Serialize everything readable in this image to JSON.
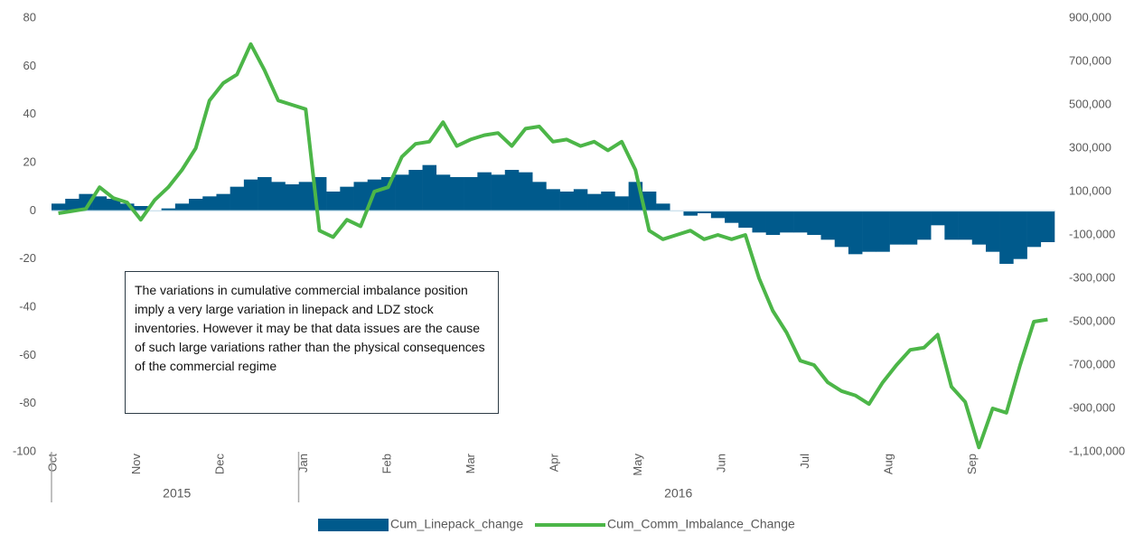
{
  "chart_data": {
    "type": "bar-line",
    "x_labels": [
      "Oct",
      "Nov",
      "Dec",
      "Jan",
      "Feb",
      "Mar",
      "Apr",
      "May",
      "Jun",
      "Jul",
      "Aug",
      "Sep"
    ],
    "year_labels": [
      "2015",
      "2016"
    ],
    "annotation": "The variations in cumulative commercial imbalance position imply a very large variation in linepack and LDZ stock inventories. However it may be that data issues are the cause of such large variations rather than the physical consequences of the commercial regime",
    "ylim": [
      -100,
      80
    ],
    "yticks": [
      -100,
      -80,
      -60,
      -40,
      -20,
      0,
      20,
      40,
      60,
      80
    ],
    "y2lim": [
      -1100000,
      900000
    ],
    "y2ticks": [
      {
        "value": -1100000,
        "label": "-1,100,000"
      },
      {
        "value": -900000,
        "label": "-900,000"
      },
      {
        "value": -700000,
        "label": "-700,000"
      },
      {
        "value": -500000,
        "label": "-500,000"
      },
      {
        "value": -300000,
        "label": "-300,000"
      },
      {
        "value": -100000,
        "label": "-100,000"
      },
      {
        "value": 100000,
        "label": "100,000"
      },
      {
        "value": 300000,
        "label": "300,000"
      },
      {
        "value": 500000,
        "label": "500,000"
      },
      {
        "value": 700000,
        "label": "700,000"
      },
      {
        "value": 900000,
        "label": "900,000"
      }
    ],
    "legend": "bottom",
    "series": [
      {
        "name": "Cum_Linepack_change",
        "color": "#005a8c",
        "kind": "bar",
        "axis": "y",
        "values": [
          3,
          5,
          7,
          6,
          5,
          3,
          2,
          0,
          1,
          3,
          5,
          6,
          7,
          10,
          13,
          14,
          12,
          11,
          12,
          14,
          8,
          10,
          12,
          13,
          14,
          15,
          17,
          19,
          15,
          14,
          14,
          16,
          15,
          17,
          16,
          12,
          9,
          8,
          9,
          7,
          8,
          6,
          12,
          8,
          3,
          0,
          -2,
          -1,
          -3,
          -5,
          -7,
          -9,
          -10,
          -9,
          -9,
          -10,
          -12,
          -15,
          -18,
          -17,
          -17,
          -14,
          -14,
          -12,
          -6,
          -12,
          -12,
          -14,
          -17,
          -22,
          -20,
          -15,
          -13
        ]
      },
      {
        "name": "Cum_Comm_Imbalance_Change",
        "color": "#4cb648",
        "kind": "line",
        "axis": "y2",
        "values": [
          0,
          10000,
          20000,
          120000,
          70000,
          50000,
          -30000,
          60000,
          120000,
          200000,
          300000,
          520000,
          600000,
          640000,
          780000,
          660000,
          520000,
          500000,
          480000,
          -80000,
          -110000,
          -30000,
          -60000,
          100000,
          120000,
          260000,
          320000,
          330000,
          420000,
          310000,
          340000,
          360000,
          370000,
          310000,
          390000,
          400000,
          330000,
          340000,
          310000,
          330000,
          290000,
          330000,
          200000,
          -80000,
          -120000,
          -100000,
          -80000,
          -120000,
          -100000,
          -120000,
          -100000,
          -300000,
          -450000,
          -550000,
          -680000,
          -700000,
          -780000,
          -820000,
          -840000,
          -880000,
          -780000,
          -700000,
          -630000,
          -620000,
          -560000,
          -800000,
          -870000,
          -1080000,
          -900000,
          -920000,
          -700000,
          -500000,
          -490000
        ]
      }
    ]
  }
}
